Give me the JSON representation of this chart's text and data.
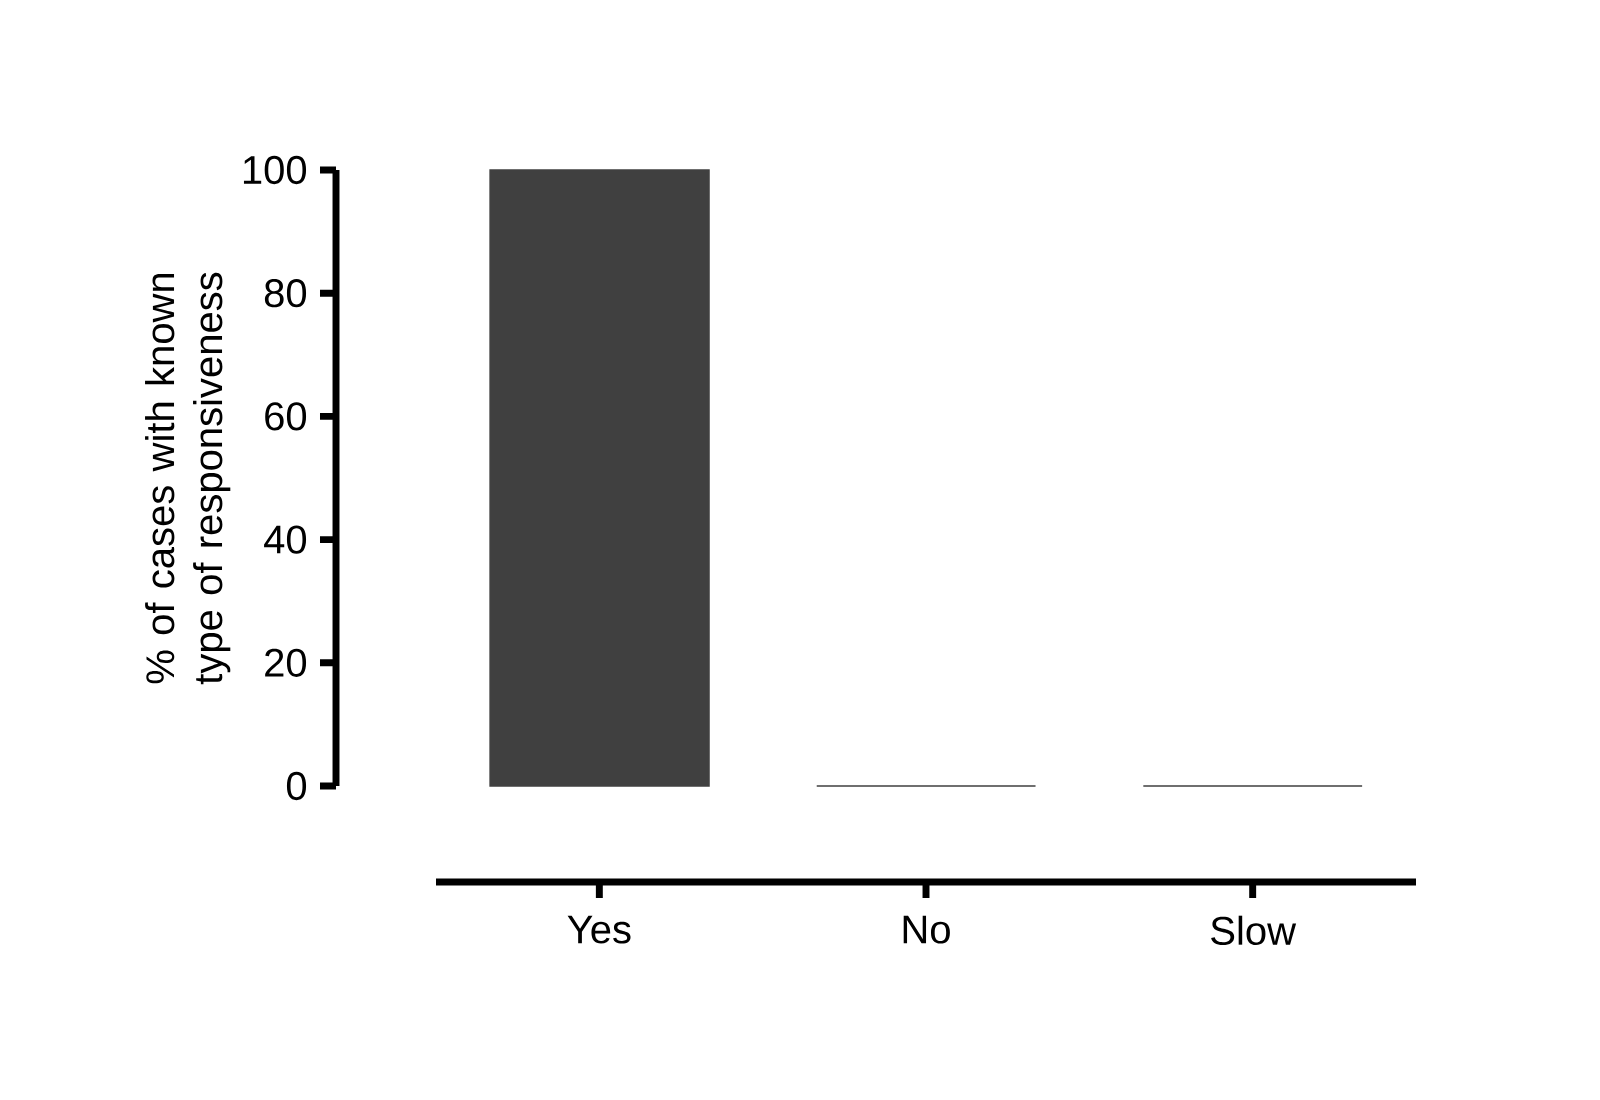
{
  "chart_data": {
    "type": "bar",
    "ylabel": "% of cases with  known type of responsiveness",
    "categories": [
      "Yes",
      "No",
      "Slow"
    ],
    "values": [
      100,
      0,
      0
    ],
    "color": "#404040",
    "ylim": [
      0,
      100
    ],
    "yticks": [
      0,
      20,
      40,
      60,
      80,
      100
    ]
  }
}
